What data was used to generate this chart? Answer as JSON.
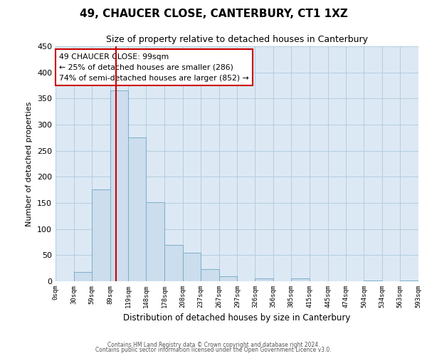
{
  "title": "49, CHAUCER CLOSE, CANTERBURY, CT1 1XZ",
  "subtitle": "Size of property relative to detached houses in Canterbury",
  "xlabel": "Distribution of detached houses by size in Canterbury",
  "ylabel": "Number of detached properties",
  "bar_color": "#ccdded",
  "bar_edgecolor": "#7baec8",
  "vline_x": 99,
  "vline_color": "#cc0000",
  "ylim": [
    0,
    450
  ],
  "yticks": [
    0,
    50,
    100,
    150,
    200,
    250,
    300,
    350,
    400,
    450
  ],
  "bin_edges": [
    0,
    30,
    59,
    89,
    119,
    148,
    178,
    208,
    237,
    267,
    297,
    326,
    356,
    385,
    415,
    445,
    474,
    504,
    534,
    563,
    593
  ],
  "bar_heights": [
    0,
    18,
    176,
    365,
    275,
    151,
    70,
    55,
    23,
    10,
    0,
    6,
    0,
    6,
    0,
    0,
    0,
    1,
    0,
    1
  ],
  "annotation_title": "49 CHAUCER CLOSE: 99sqm",
  "annotation_line1": "← 25% of detached houses are smaller (286)",
  "annotation_line2": "74% of semi-detached houses are larger (852) →",
  "annotation_box_facecolor": "#ffffff",
  "annotation_box_edgecolor": "#cc0000",
  "footnote1": "Contains HM Land Registry data © Crown copyright and database right 2024.",
  "footnote2": "Contains public sector information licensed under the Open Government Licence v3.0.",
  "background_color": "#ffffff",
  "plot_bg_color": "#dce9f5",
  "grid_color": "#b8cfe0",
  "tick_labels": [
    "0sqm",
    "30sqm",
    "59sqm",
    "89sqm",
    "119sqm",
    "148sqm",
    "178sqm",
    "208sqm",
    "237sqm",
    "267sqm",
    "297sqm",
    "326sqm",
    "356sqm",
    "385sqm",
    "415sqm",
    "445sqm",
    "474sqm",
    "504sqm",
    "534sqm",
    "563sqm",
    "593sqm"
  ]
}
